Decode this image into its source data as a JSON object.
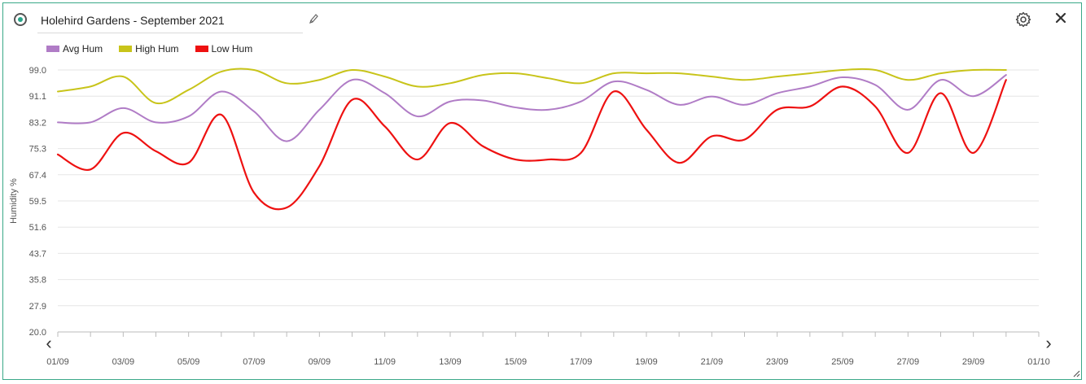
{
  "header": {
    "title": "Holehird Gardens - September 2021",
    "radio_icon": "radio-selected-icon",
    "edit_icon": "pencil-icon",
    "settings_icon": "gear-icon",
    "close_icon": "close-icon"
  },
  "navigation": {
    "prev_label": "‹",
    "next_label": "›"
  },
  "chart_data": {
    "type": "line",
    "title": "",
    "ylabel": "Humidity %",
    "xlabel": "",
    "ylim": [
      20.0,
      99.0
    ],
    "yticks": [
      "99.0",
      "91.1",
      "83.2",
      "75.3",
      "67.4",
      "59.5",
      "51.6",
      "43.7",
      "35.8",
      "27.9",
      "20.0"
    ],
    "xticks": [
      "01/09",
      "03/09",
      "05/09",
      "07/09",
      "09/09",
      "11/09",
      "13/09",
      "15/09",
      "17/09",
      "19/09",
      "21/09",
      "23/09",
      "25/09",
      "27/09",
      "29/09",
      "01/10"
    ],
    "grid": true,
    "legend": "top-left",
    "x": [
      1,
      2,
      3,
      4,
      5,
      6,
      7,
      8,
      9,
      10,
      11,
      12,
      13,
      14,
      15,
      16,
      17,
      18,
      19,
      20,
      21,
      22,
      23,
      24,
      25,
      26,
      27,
      28,
      29,
      30
    ],
    "series": [
      {
        "name": "Avg Hum",
        "color": "#b07cc6",
        "values": [
          83.2,
          83.2,
          87.5,
          83.2,
          85.0,
          92.5,
          86.5,
          77.5,
          87.0,
          96.0,
          92.0,
          85.0,
          89.5,
          89.8,
          87.7,
          87.0,
          89.5,
          95.5,
          93.0,
          88.5,
          91.0,
          88.5,
          92.0,
          94.0,
          96.8,
          94.5,
          87.0,
          96.0,
          91.1,
          97.5
        ]
      },
      {
        "name": "High Hum",
        "color": "#c8c41a",
        "values": [
          92.5,
          94.0,
          97.0,
          89.0,
          93.0,
          98.5,
          99.0,
          95.0,
          96.0,
          99.0,
          97.0,
          94.0,
          95.0,
          97.5,
          98.0,
          96.5,
          95.0,
          98.0,
          98.0,
          98.0,
          97.0,
          96.0,
          97.0,
          98.0,
          99.0,
          99.0,
          96.0,
          98.0,
          99.0,
          99.0
        ]
      },
      {
        "name": "Low Hum",
        "color": "#ee1111",
        "values": [
          73.5,
          69.0,
          80.0,
          74.5,
          71.0,
          85.5,
          62.0,
          57.5,
          70.0,
          90.0,
          82.0,
          72.0,
          83.0,
          76.0,
          72.0,
          72.0,
          74.0,
          92.5,
          81.0,
          71.0,
          79.0,
          78.0,
          87.0,
          88.0,
          94.0,
          88.0,
          74.0,
          92.0,
          74.0,
          96.0
        ]
      }
    ]
  }
}
